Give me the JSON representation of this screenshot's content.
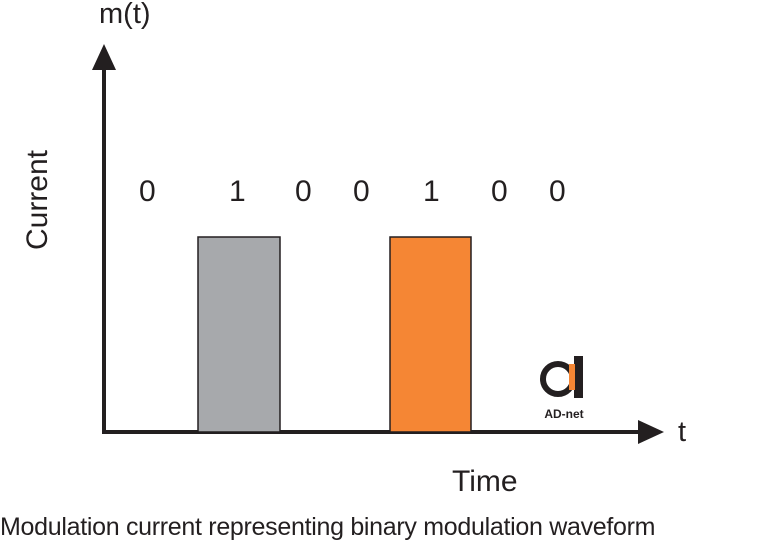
{
  "diagram": {
    "y_axis_title": "m(t)",
    "y_axis_label": "Current",
    "x_axis_title": "t",
    "x_axis_label": "Time",
    "bits": [
      "0",
      "1",
      "0",
      "0",
      "1",
      "0",
      "0"
    ],
    "caption": "Modulation current representing binary modulation waveform",
    "logo": {
      "text": "AD-net",
      "inner_text": "net"
    },
    "colors": {
      "axis": "#231f20",
      "pulse_1": "#a7a9ac",
      "pulse_2": "#f58634",
      "logo_accent": "#f58634"
    }
  }
}
